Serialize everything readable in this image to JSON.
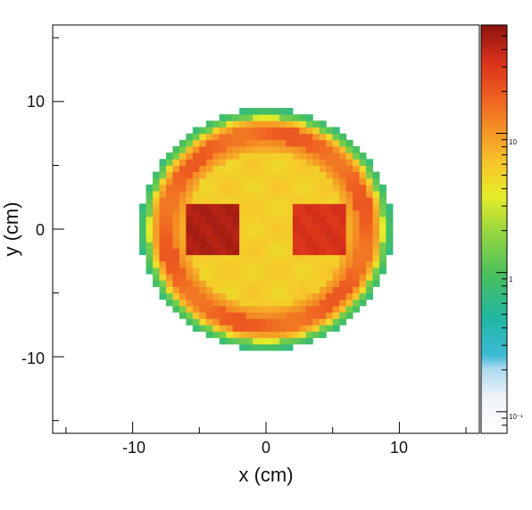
{
  "chart_data": {
    "type": "heatmap",
    "title": "",
    "xlabel": "x (cm)",
    "ylabel": "y (cm)",
    "xlim": [
      -16,
      16
    ],
    "ylim": [
      -16,
      16
    ],
    "x_ticks": [
      "-10",
      "0",
      "10"
    ],
    "y_ticks": [
      "10",
      "0",
      "-10"
    ],
    "x_tick_values": [
      -10,
      0,
      10
    ],
    "y_tick_values": [
      10,
      0,
      -10
    ],
    "colorbar": {
      "scale": "log",
      "range": [
        0.07,
        60
      ],
      "tick_labels": [
        "10",
        "1",
        "10⁻¹"
      ],
      "tick_values": [
        10,
        1,
        0.1
      ]
    },
    "phantom": {
      "disk_radius_cm": 9.5,
      "edge_value": 1,
      "rim_value": 20,
      "interior_value": 6,
      "hot_regions": [
        {
          "center_x_cm": -4,
          "center_y_cm": 0,
          "half_width_cm": 2,
          "value": 50
        },
        {
          "center_x_cm": 4,
          "center_y_cm": 0,
          "half_width_cm": 2,
          "value": 35
        }
      ]
    }
  }
}
